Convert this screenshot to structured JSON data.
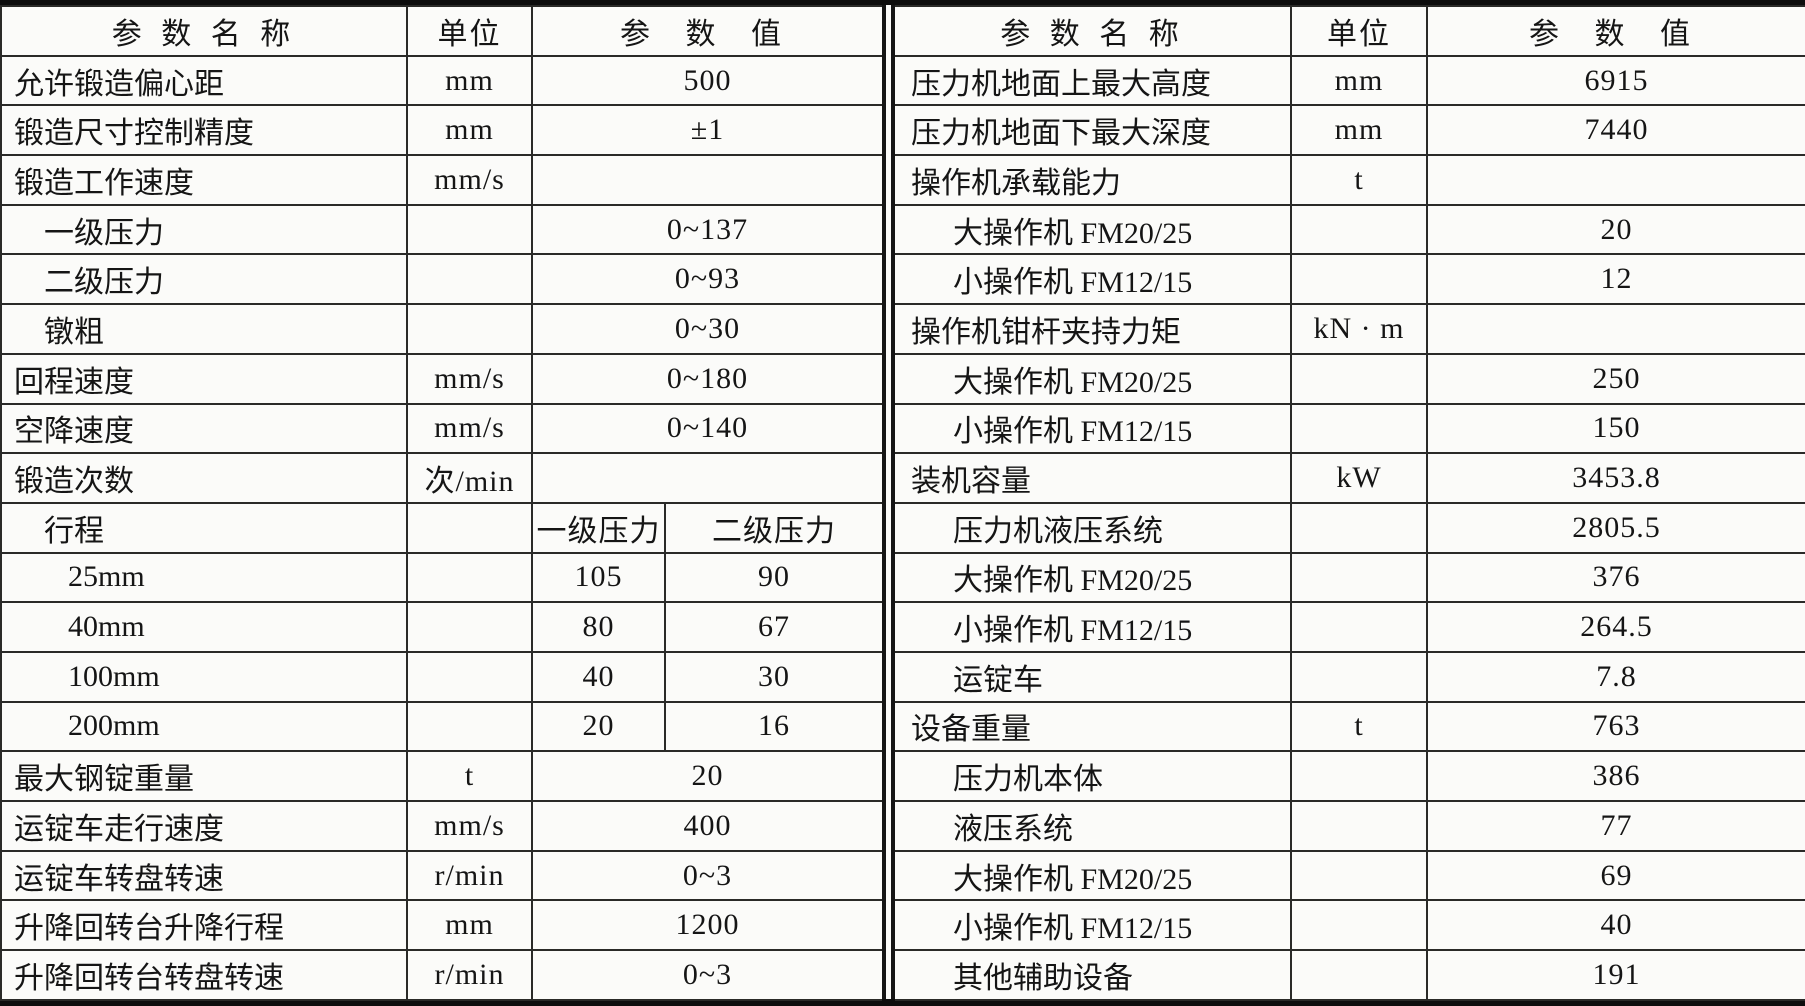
{
  "colors": {
    "line": "#2a2a28",
    "outer_border": "#0d0d0d",
    "background": "#fbfbf9",
    "text": "#151515"
  },
  "header": {
    "name": "参 数 名 称",
    "unit": "单位",
    "value": "参 数 值"
  },
  "left_rows": [
    {
      "label": "允许锻造偏心距",
      "unit": "mm",
      "value": "500",
      "indent": 0
    },
    {
      "label": "锻造尺寸控制精度",
      "unit": "mm",
      "value": "±1",
      "indent": 0
    },
    {
      "label": "锻造工作速度",
      "unit": "mm/s",
      "value": "",
      "indent": 0
    },
    {
      "label": "一级压力",
      "unit": "",
      "value": "0~137",
      "indent": 1
    },
    {
      "label": "二级压力",
      "unit": "",
      "value": "0~93",
      "indent": 1
    },
    {
      "label": "镦粗",
      "unit": "",
      "value": "0~30",
      "indent": 1
    },
    {
      "label": "回程速度",
      "unit": "mm/s",
      "value": "0~180",
      "indent": 0
    },
    {
      "label": "空降速度",
      "unit": "mm/s",
      "value": "0~140",
      "indent": 0
    },
    {
      "label": "锻造次数",
      "unit": "次/min",
      "value": "",
      "indent": 0
    },
    {
      "label": "行程",
      "unit": "",
      "split": [
        "一级压力",
        "二级压力"
      ],
      "indent": 1
    },
    {
      "label": "25mm",
      "unit": "",
      "split": [
        "105",
        "90"
      ],
      "indent": 2
    },
    {
      "label": "40mm",
      "unit": "",
      "split": [
        "80",
        "67"
      ],
      "indent": 2
    },
    {
      "label": "100mm",
      "unit": "",
      "split": [
        "40",
        "30"
      ],
      "indent": 2
    },
    {
      "label": "200mm",
      "unit": "",
      "split": [
        "20",
        "16"
      ],
      "indent": 2
    },
    {
      "label": "最大钢锭重量",
      "unit": "t",
      "value": "20",
      "indent": 0
    },
    {
      "label": "运锭车走行速度",
      "unit": "mm/s",
      "value": "400",
      "indent": 0
    },
    {
      "label": "运锭车转盘转速",
      "unit": "r/min",
      "value": "0~3",
      "indent": 0
    },
    {
      "label": "升降回转台升降行程",
      "unit": "mm",
      "value": "1200",
      "indent": 0
    },
    {
      "label": "升降回转台转盘转速",
      "unit": "r/min",
      "value": "0~3",
      "indent": 0
    }
  ],
  "right_rows": [
    {
      "label": "压力机地面上最大高度",
      "unit": "mm",
      "value": "6915",
      "indent": 0
    },
    {
      "label": "压力机地面下最大深度",
      "unit": "mm",
      "value": "7440",
      "indent": 0
    },
    {
      "label": "操作机承载能力",
      "unit": "t",
      "value": "",
      "indent": 0
    },
    {
      "label": "大操作机 FM20/25",
      "unit": "",
      "value": "20",
      "indent": 1
    },
    {
      "label": "小操作机 FM12/15",
      "unit": "",
      "value": "12",
      "indent": 1
    },
    {
      "label": "操作机钳杆夹持力矩",
      "unit": "kN · m",
      "value": "",
      "indent": 0
    },
    {
      "label": "大操作机 FM20/25",
      "unit": "",
      "value": "250",
      "indent": 1
    },
    {
      "label": "小操作机 FM12/15",
      "unit": "",
      "value": "150",
      "indent": 1
    },
    {
      "label": "装机容量",
      "unit": "kW",
      "value": "3453.8",
      "indent": 0
    },
    {
      "label": "压力机液压系统",
      "unit": "",
      "value": "2805.5",
      "indent": 1
    },
    {
      "label": "大操作机 FM20/25",
      "unit": "",
      "value": "376",
      "indent": 1
    },
    {
      "label": "小操作机 FM12/15",
      "unit": "",
      "value": "264.5",
      "indent": 1
    },
    {
      "label": "运锭车",
      "unit": "",
      "value": "7.8",
      "indent": 1
    },
    {
      "label": "设备重量",
      "unit": "t",
      "value": "763",
      "indent": 0
    },
    {
      "label": "压力机本体",
      "unit": "",
      "value": "386",
      "indent": 1
    },
    {
      "label": "液压系统",
      "unit": "",
      "value": "77",
      "indent": 1
    },
    {
      "label": "大操作机 FM20/25",
      "unit": "",
      "value": "69",
      "indent": 1
    },
    {
      "label": "小操作机 FM12/15",
      "unit": "",
      "value": "40",
      "indent": 1
    },
    {
      "label": "其他辅助设备",
      "unit": "",
      "value": "191",
      "indent": 1
    }
  ]
}
